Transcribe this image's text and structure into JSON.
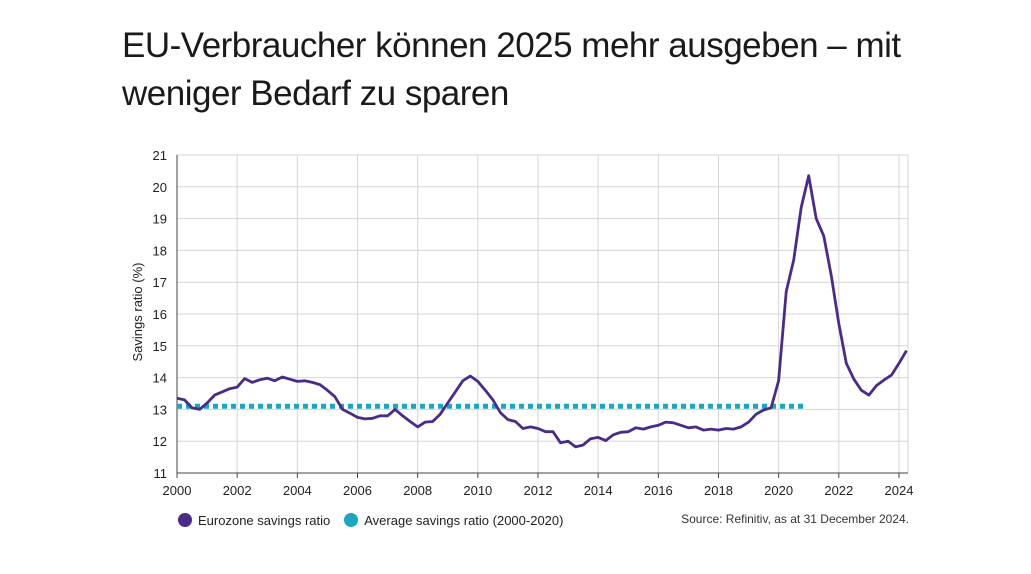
{
  "headline": {
    "line1": "EU-Verbraucher können 2025 mehr ausgeben – mit",
    "line2": "weniger Bedarf zu sparen"
  },
  "source": "Source: Refinitiv, as at 31 December 2024.",
  "legend": [
    {
      "label": "Eurozone savings ratio",
      "color": "#4b2a8a"
    },
    {
      "label": "Average savings ratio (2000-2020)",
      "color": "#1aa7c0"
    }
  ],
  "chart_data": {
    "type": "line",
    "title": "",
    "xlabel": "",
    "ylabel": "Savings ratio (%)",
    "xlim": [
      2000,
      2024.3
    ],
    "ylim": [
      11,
      21
    ],
    "xticks": [
      2000,
      2002,
      2004,
      2006,
      2008,
      2010,
      2012,
      2014,
      2016,
      2018,
      2020,
      2022,
      2024
    ],
    "yticks": [
      11,
      12,
      13,
      14,
      15,
      16,
      17,
      18,
      19,
      20,
      21
    ],
    "grid": true,
    "series": [
      {
        "name": "Eurozone savings ratio",
        "color": "#4b2a8a",
        "style": "solid",
        "x": [
          2000.0,
          2000.25,
          2000.5,
          2000.75,
          2001.0,
          2001.25,
          2001.5,
          2001.75,
          2002.0,
          2002.25,
          2002.5,
          2002.75,
          2003.0,
          2003.25,
          2003.5,
          2003.75,
          2004.0,
          2004.25,
          2004.5,
          2004.75,
          2005.0,
          2005.25,
          2005.5,
          2005.75,
          2006.0,
          2006.25,
          2006.5,
          2006.75,
          2007.0,
          2007.25,
          2007.5,
          2007.75,
          2008.0,
          2008.25,
          2008.5,
          2008.75,
          2009.0,
          2009.25,
          2009.5,
          2009.75,
          2010.0,
          2010.25,
          2010.5,
          2010.75,
          2011.0,
          2011.25,
          2011.5,
          2011.75,
          2012.0,
          2012.25,
          2012.5,
          2012.75,
          2013.0,
          2013.25,
          2013.5,
          2013.75,
          2014.0,
          2014.25,
          2014.5,
          2014.75,
          2015.0,
          2015.25,
          2015.5,
          2015.75,
          2016.0,
          2016.25,
          2016.5,
          2016.75,
          2017.0,
          2017.25,
          2017.5,
          2017.75,
          2018.0,
          2018.25,
          2018.5,
          2018.75,
          2019.0,
          2019.25,
          2019.5,
          2019.75,
          2020.0,
          2020.25,
          2020.5,
          2020.75,
          2021.0,
          2021.25,
          2021.5,
          2021.75,
          2022.0,
          2022.25,
          2022.5,
          2022.75,
          2023.0,
          2023.25,
          2023.5,
          2023.75,
          2024.0,
          2024.25
        ],
        "y": [
          13.35,
          13.3,
          13.05,
          13.0,
          13.2,
          13.45,
          13.55,
          13.65,
          13.7,
          13.97,
          13.85,
          13.93,
          13.98,
          13.9,
          14.02,
          13.95,
          13.88,
          13.9,
          13.85,
          13.78,
          13.6,
          13.4,
          13.0,
          12.88,
          12.75,
          12.7,
          12.72,
          12.8,
          12.8,
          13.0,
          12.8,
          12.62,
          12.45,
          12.6,
          12.62,
          12.85,
          13.2,
          13.55,
          13.9,
          14.05,
          13.88,
          13.6,
          13.3,
          12.9,
          12.68,
          12.62,
          12.4,
          12.45,
          12.4,
          12.3,
          12.3,
          11.95,
          12.0,
          11.82,
          11.88,
          12.08,
          12.12,
          12.02,
          12.2,
          12.28,
          12.3,
          12.42,
          12.38,
          12.45,
          12.5,
          12.6,
          12.58,
          12.5,
          12.42,
          12.45,
          12.35,
          12.38,
          12.35,
          12.4,
          12.38,
          12.45,
          12.6,
          12.85,
          12.98,
          13.05,
          13.9,
          16.7,
          17.7,
          19.35,
          20.35,
          19.0,
          18.45,
          17.2,
          15.7,
          14.45,
          13.95,
          13.6,
          13.45,
          13.75,
          13.92,
          14.08,
          14.45,
          14.85
        ]
      },
      {
        "name": "Average savings ratio (2000-2020)",
        "color": "#1aa7c0",
        "style": "dotted",
        "x": [
          2000.0,
          2020.9
        ],
        "y": [
          13.1,
          13.1
        ]
      }
    ],
    "legend_position": "bottom-left"
  }
}
